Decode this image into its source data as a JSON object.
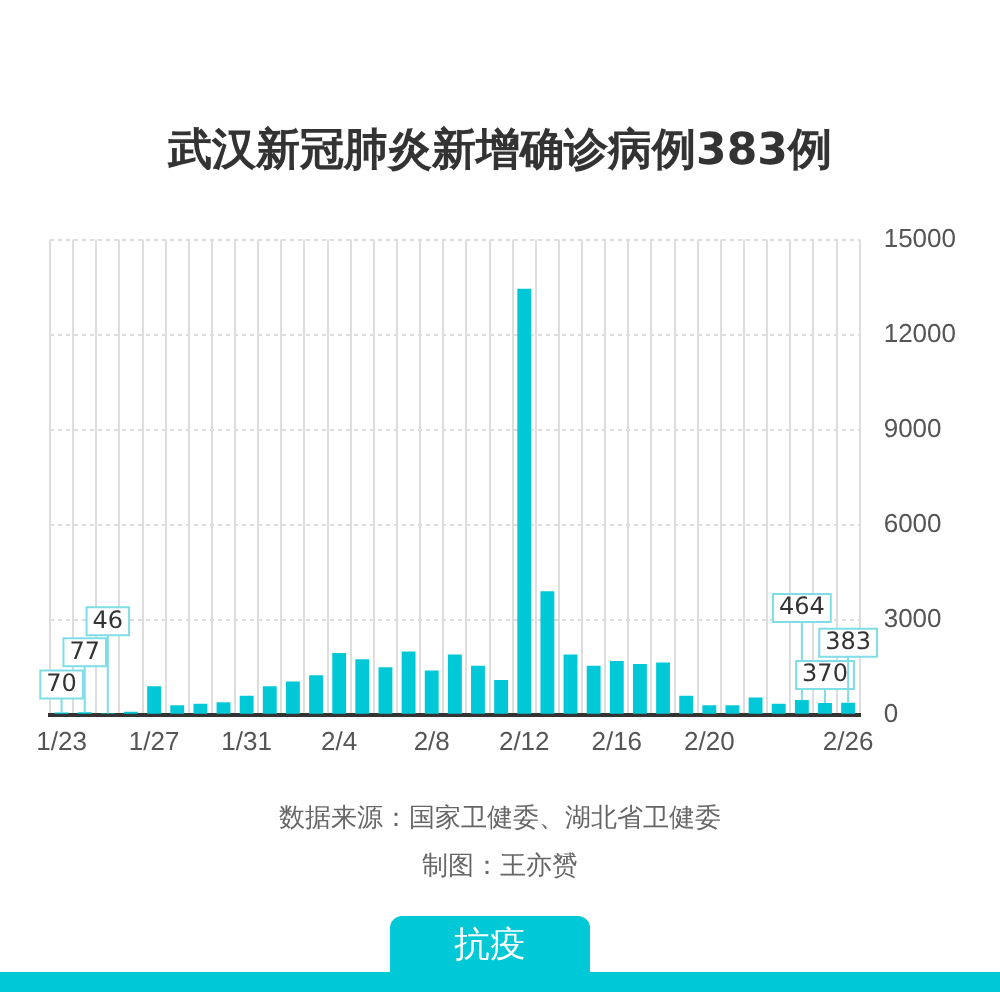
{
  "chart_data": {
    "type": "bar",
    "title": "武汉新冠肺炎新增确诊病例383例",
    "categories": [
      "1/23",
      null,
      null,
      null,
      "1/27",
      null,
      null,
      null,
      "1/31",
      null,
      null,
      null,
      "2/4",
      null,
      null,
      null,
      "2/8",
      null,
      null,
      null,
      "2/12",
      null,
      null,
      null,
      "2/16",
      null,
      null,
      null,
      "2/20",
      null,
      null,
      null,
      null,
      null,
      "2/26"
    ],
    "values": [
      70,
      77,
      46,
      100,
      900,
      300,
      350,
      400,
      600,
      900,
      1050,
      1250,
      1950,
      1750,
      1500,
      2000,
      1400,
      1900,
      1550,
      1100,
      13450,
      3900,
      1900,
      1550,
      1700,
      1600,
      1650,
      600,
      300,
      300,
      550,
      350,
      464,
      370,
      383
    ],
    "value_labels": [
      "70",
      "77",
      "46",
      null,
      null,
      null,
      null,
      null,
      null,
      null,
      null,
      null,
      null,
      null,
      null,
      null,
      null,
      null,
      null,
      null,
      null,
      null,
      null,
      null,
      null,
      null,
      null,
      null,
      null,
      null,
      null,
      null,
      "464",
      "370",
      "383"
    ],
    "color": "#00c8d7",
    "ylim": [
      0,
      15000
    ],
    "yticks": [
      0,
      3000,
      6000,
      9000,
      12000,
      15000
    ],
    "grid": true,
    "annotations": [
      "数据来源：国家卫健委、湖北省卫健委",
      "制图：王亦赟",
      "抗疫"
    ]
  }
}
